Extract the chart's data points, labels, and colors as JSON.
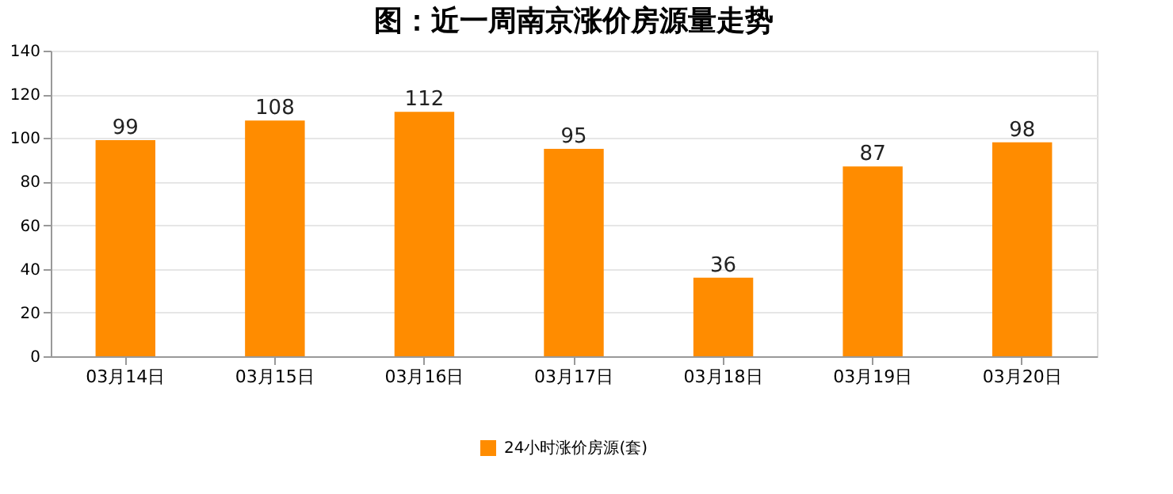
{
  "chart_data": {
    "type": "bar",
    "title": "图：近一周南京涨价房源量走势",
    "categories": [
      "03月14日",
      "03月15日",
      "03月16日",
      "03月17日",
      "03月18日",
      "03月19日",
      "03月20日"
    ],
    "series": [
      {
        "name": "24小时涨价房源(套)",
        "color": "#ff8c00",
        "values": [
          99,
          108,
          112,
          95,
          36,
          87,
          98
        ]
      }
    ],
    "ylim": [
      0,
      140
    ],
    "yticks": [
      0,
      20,
      40,
      60,
      80,
      100,
      120,
      140
    ],
    "grid": "y",
    "legend": "bottom",
    "data_labels": true
  }
}
